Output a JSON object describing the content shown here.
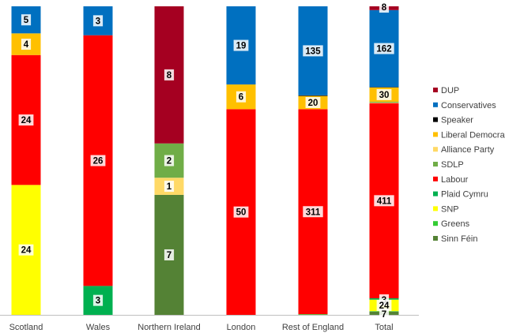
{
  "chart_data": {
    "type": "bar",
    "stacked": "percent",
    "categories": [
      "Scotland",
      "Wales",
      "Northern Ireland",
      "London",
      "Rest of England",
      "Total"
    ],
    "series": [
      {
        "name": "Sinn Féin",
        "color": "#548235",
        "values": [
          0,
          0,
          7,
          0,
          0,
          7
        ]
      },
      {
        "name": "Greens",
        "color": "#33CC33",
        "values": [
          0,
          0,
          0,
          0,
          1,
          1
        ]
      },
      {
        "name": "SNP",
        "color": "#FFFF00",
        "values": [
          24,
          0,
          0,
          0,
          0,
          24
        ]
      },
      {
        "name": "Plaid Cymru",
        "color": "#00B050",
        "values": [
          0,
          3,
          0,
          0,
          0,
          3
        ]
      },
      {
        "name": "Labour",
        "color": "#FF0000",
        "values": [
          24,
          26,
          0,
          50,
          311,
          411
        ]
      },
      {
        "name": "Alliance Party",
        "color": "#FFD966",
        "values": [
          0,
          0,
          1,
          0,
          0,
          1
        ]
      },
      {
        "name": "SDLP",
        "color": "#70AD47",
        "values": [
          0,
          0,
          2,
          0,
          0,
          2
        ]
      },
      {
        "name": "Liberal Democrats",
        "color": "#FFC000",
        "values": [
          4,
          0,
          0,
          6,
          20,
          30
        ]
      },
      {
        "name": "Speaker",
        "color": "#000000",
        "values": [
          0,
          0,
          0,
          0,
          1,
          1
        ]
      },
      {
        "name": "Conservatives",
        "color": "#0070C0",
        "values": [
          5,
          3,
          0,
          19,
          135,
          162
        ]
      },
      {
        "name": "DUP",
        "color": "#A50021",
        "values": [
          0,
          0,
          8,
          0,
          0,
          8
        ]
      }
    ],
    "labels": [
      {
        "category": 0,
        "series": "Conservatives",
        "text": "5"
      },
      {
        "category": 0,
        "series": "Liberal Democrats",
        "text": "4"
      },
      {
        "category": 0,
        "series": "Labour",
        "text": "24"
      },
      {
        "category": 0,
        "series": "SNP",
        "text": "24"
      },
      {
        "category": 1,
        "series": "Conservatives",
        "text": "3"
      },
      {
        "category": 1,
        "series": "Labour",
        "text": "26"
      },
      {
        "category": 1,
        "series": "Plaid Cymru",
        "text": "3"
      },
      {
        "category": 2,
        "series": "DUP",
        "text": "8"
      },
      {
        "category": 2,
        "series": "Alliance Party",
        "text": "1"
      },
      {
        "category": 2,
        "series": "SDLP",
        "text": "2"
      },
      {
        "category": 2,
        "series": "Sinn Féin",
        "text": "7"
      },
      {
        "category": 3,
        "series": "Conservatives",
        "text": "19"
      },
      {
        "category": 3,
        "series": "Liberal Democrats",
        "text": "6"
      },
      {
        "category": 3,
        "series": "Labour",
        "text": "50"
      },
      {
        "category": 4,
        "series": "Conservatives",
        "text": "135"
      },
      {
        "category": 4,
        "series": "Liberal Democrats",
        "text": "20"
      },
      {
        "category": 4,
        "series": "Labour",
        "text": "311"
      },
      {
        "category": 5,
        "series": "DUP",
        "text": "8"
      },
      {
        "category": 5,
        "series": "Conservatives",
        "text": "162"
      },
      {
        "category": 5,
        "series": "Liberal Democrats",
        "text": "30"
      },
      {
        "category": 5,
        "series": "Labour",
        "text": "411"
      },
      {
        "category": 5,
        "series": "Plaid Cymru",
        "text": "3"
      },
      {
        "category": 5,
        "series": "SNP",
        "text": "24"
      },
      {
        "category": 5,
        "series": "Sinn Féin",
        "text": "7"
      }
    ],
    "legend": {
      "position": "right",
      "order": [
        "DUP",
        "Conservatives",
        "Speaker",
        "Liberal Democrats",
        "Alliance Party",
        "SDLP",
        "Labour",
        "Plaid Cymru",
        "SNP",
        "Greens",
        "Sinn Féin"
      ]
    },
    "title": "",
    "xlabel": "",
    "ylabel": "",
    "ylim": [
      0,
      1
    ],
    "grid": false
  }
}
